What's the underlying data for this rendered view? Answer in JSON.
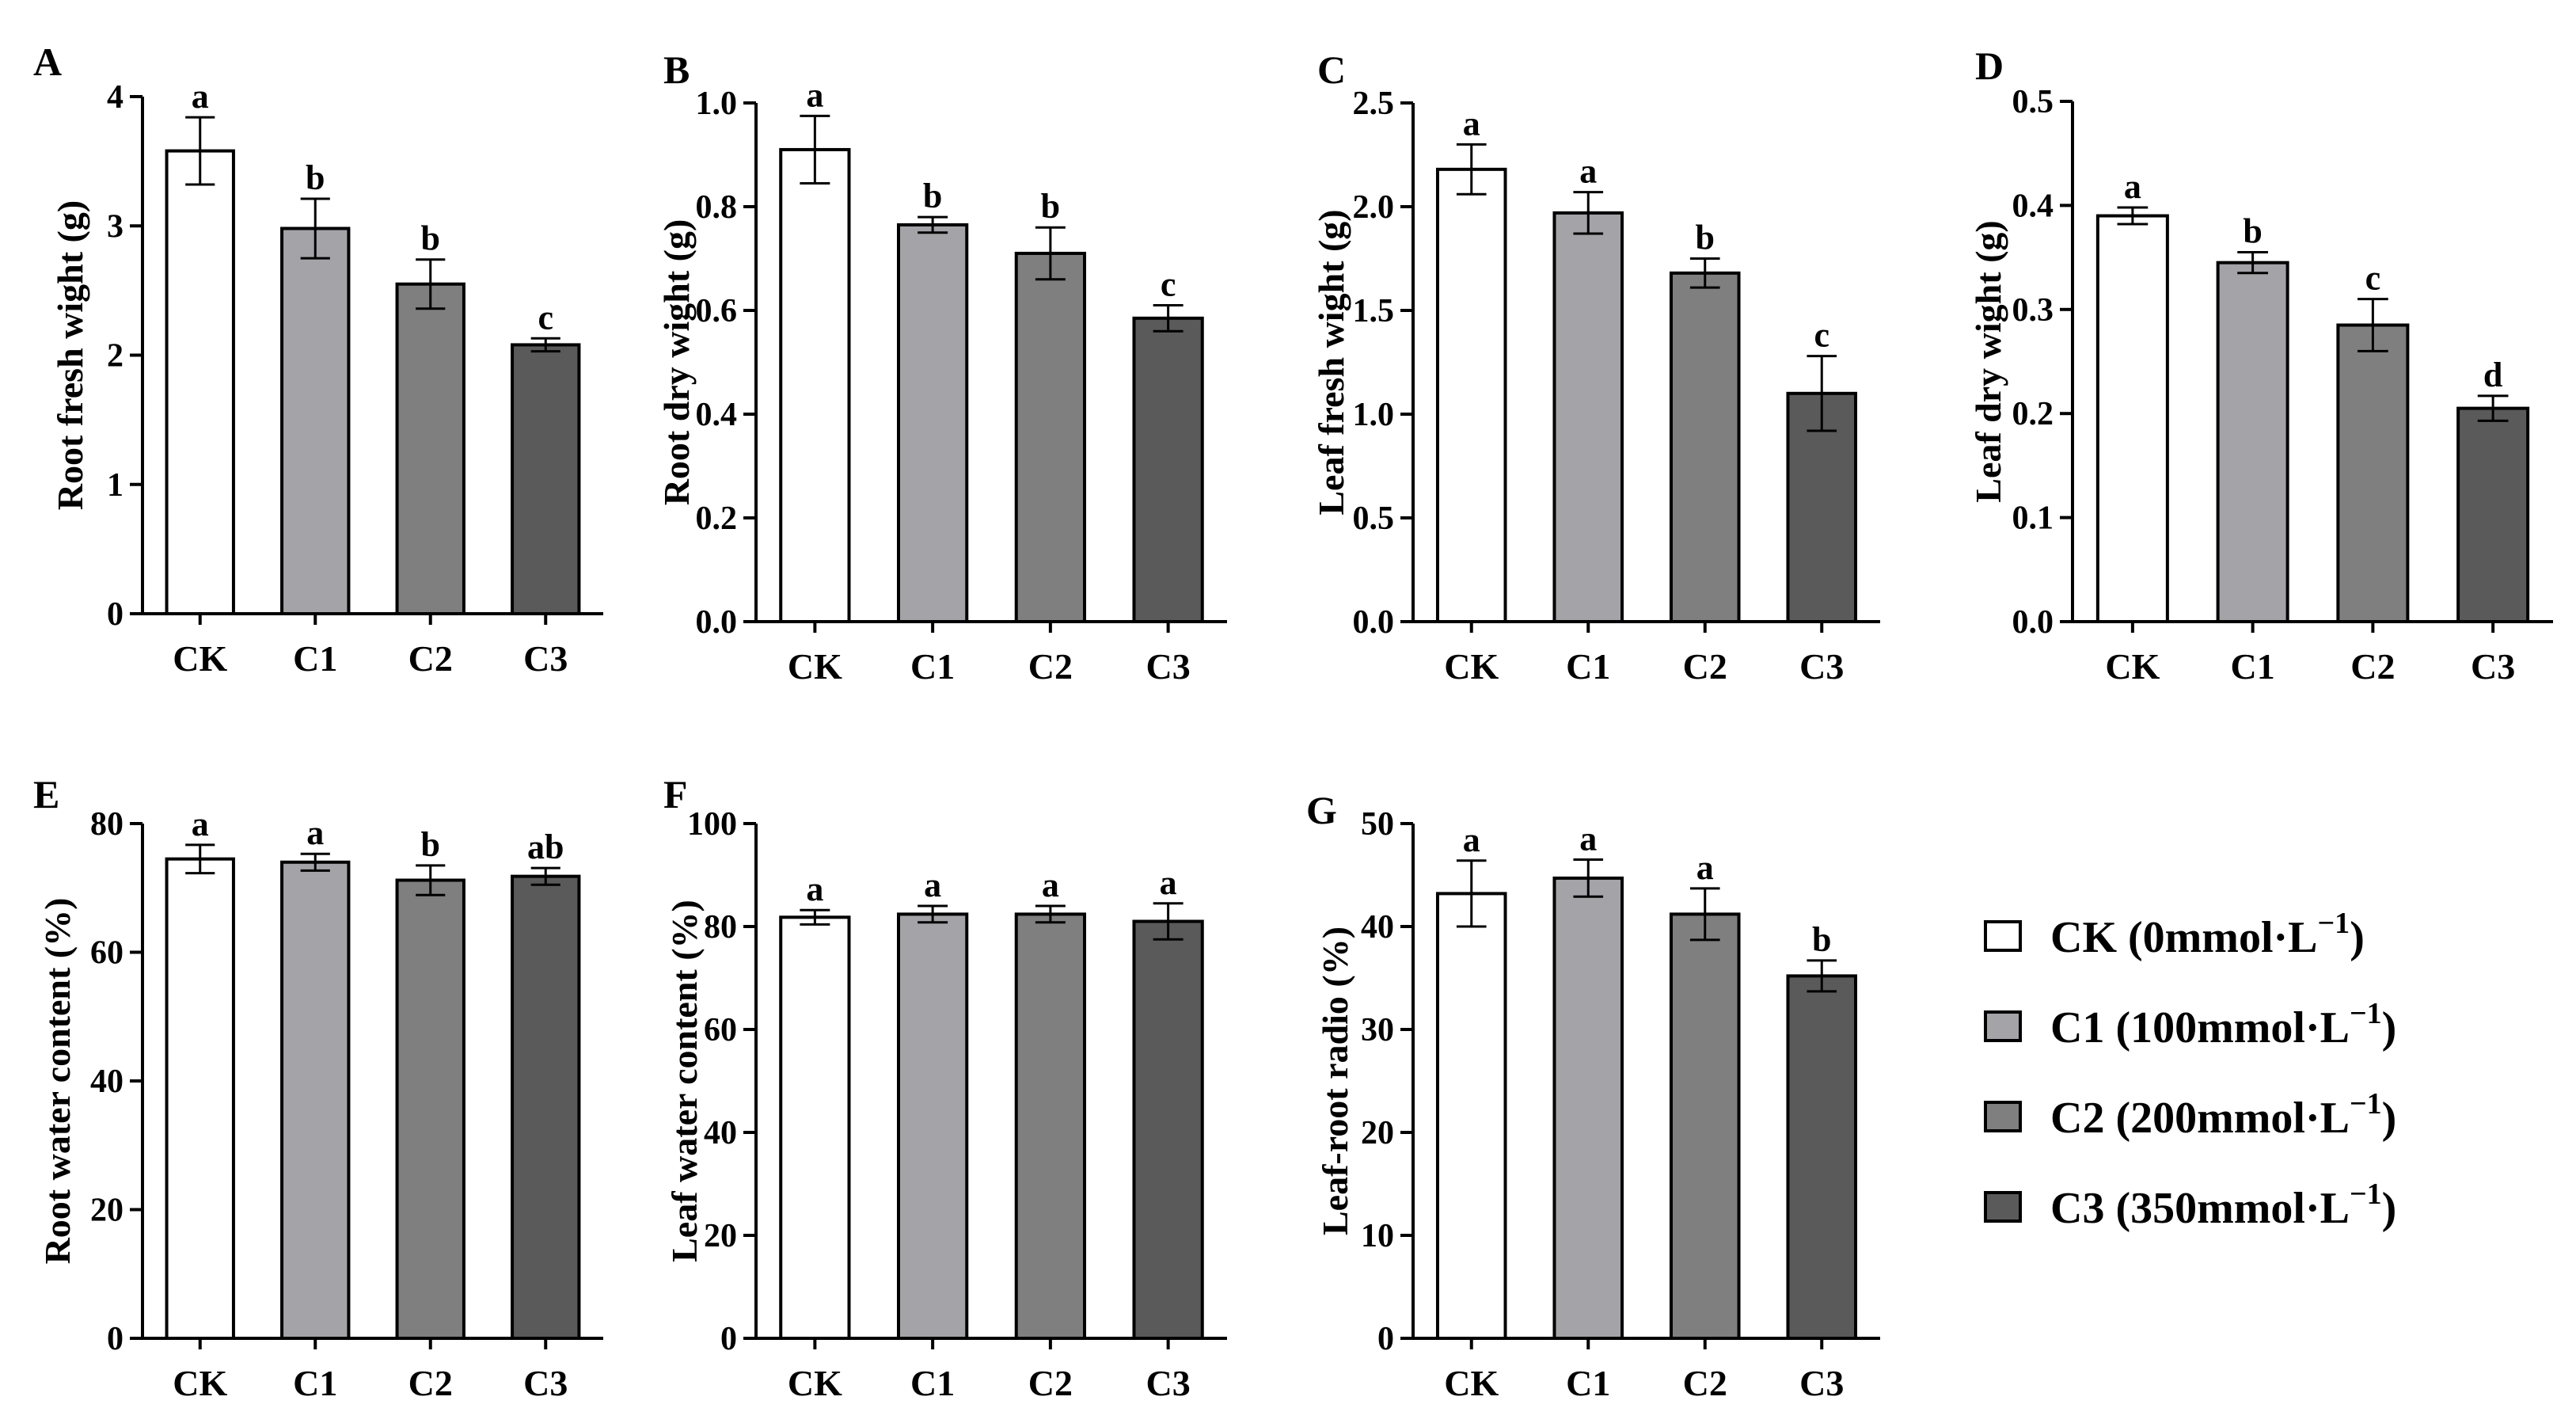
{
  "figure": {
    "categories": [
      "CK",
      "C1",
      "C2",
      "C3"
    ],
    "bar_colors": [
      "#ffffff",
      "#a3a3a8",
      "#7f7f7f",
      "#5a5a5a"
    ],
    "legend": [
      {
        "label": "CK",
        "concentration": "(0mmol·L",
        "sup": "−1",
        "close": ")"
      },
      {
        "label": "C1",
        "concentration": "(100mmol·L",
        "sup": "−1",
        "close": ")"
      },
      {
        "label": "C2",
        "concentration": "(200mmol·L",
        "sup": "−1",
        "close": ")"
      },
      {
        "label": "C3",
        "concentration": "(350mmol·L",
        "sup": "−1",
        "close": ")"
      }
    ]
  },
  "chart_data": [
    {
      "type": "bar",
      "panel": "A",
      "ylabel": "Root fresh wight (g)",
      "categories": [
        "CK",
        "C1",
        "C2",
        "C3"
      ],
      "values": [
        3.58,
        2.98,
        2.55,
        2.08
      ],
      "errors": [
        0.26,
        0.23,
        0.19,
        0.05
      ],
      "letters": [
        "a",
        "b",
        "b",
        "c"
      ],
      "ylim": [
        0,
        4
      ],
      "yticks": [
        0,
        1,
        2,
        3,
        4
      ],
      "ytick_labels": [
        "0",
        "1",
        "2",
        "3",
        "4"
      ]
    },
    {
      "type": "bar",
      "panel": "B",
      "ylabel": "Root dry wight (g)",
      "categories": [
        "CK",
        "C1",
        "C2",
        "C3"
      ],
      "values": [
        0.91,
        0.765,
        0.71,
        0.585
      ],
      "errors": [
        0.065,
        0.015,
        0.05,
        0.025
      ],
      "letters": [
        "a",
        "b",
        "b",
        "c"
      ],
      "ylim": [
        0,
        1.0
      ],
      "yticks": [
        0,
        0.2,
        0.4,
        0.6,
        0.8,
        1.0
      ],
      "ytick_labels": [
        "0.0",
        "0.2",
        "0.4",
        "0.6",
        "0.8",
        "1.0"
      ]
    },
    {
      "type": "bar",
      "panel": "C",
      "ylabel": "Leaf fresh wight (g)",
      "categories": [
        "CK",
        "C1",
        "C2",
        "C3"
      ],
      "values": [
        2.18,
        1.97,
        1.68,
        1.1
      ],
      "errors": [
        0.12,
        0.1,
        0.07,
        0.18
      ],
      "letters": [
        "a",
        "a",
        "b",
        "c"
      ],
      "ylim": [
        0,
        2.5
      ],
      "yticks": [
        0,
        0.5,
        1.0,
        1.5,
        2.0,
        2.5
      ],
      "ytick_labels": [
        "0.0",
        "0.5",
        "1.0",
        "1.5",
        "2.0",
        "2.5"
      ]
    },
    {
      "type": "bar",
      "panel": "D",
      "ylabel": "Leaf dry wight (g)",
      "categories": [
        "CK",
        "C1",
        "C2",
        "C3"
      ],
      "values": [
        0.39,
        0.345,
        0.285,
        0.205
      ],
      "errors": [
        0.008,
        0.01,
        0.025,
        0.012
      ],
      "letters": [
        "a",
        "b",
        "c",
        "d"
      ],
      "ylim": [
        0,
        0.5
      ],
      "yticks": [
        0,
        0.1,
        0.2,
        0.3,
        0.4,
        0.5
      ],
      "ytick_labels": [
        "0.0",
        "0.1",
        "0.2",
        "0.3",
        "0.4",
        "0.5"
      ]
    },
    {
      "type": "bar",
      "panel": "E",
      "ylabel": "Root water content (%)",
      "categories": [
        "CK",
        "C1",
        "C2",
        "C3"
      ],
      "values": [
        74.5,
        74.0,
        71.2,
        71.8
      ],
      "errors": [
        2.2,
        1.3,
        2.3,
        1.3
      ],
      "letters": [
        "a",
        "a",
        "b",
        "ab"
      ],
      "ylim": [
        0,
        80
      ],
      "yticks": [
        0,
        20,
        40,
        60,
        80
      ],
      "ytick_labels": [
        "0",
        "20",
        "40",
        "60",
        "80"
      ]
    },
    {
      "type": "bar",
      "panel": "F",
      "ylabel": "Leaf water content (%)",
      "categories": [
        "CK",
        "C1",
        "C2",
        "C3"
      ],
      "values": [
        81.8,
        82.4,
        82.4,
        81.0
      ],
      "errors": [
        1.4,
        1.6,
        1.6,
        3.5
      ],
      "letters": [
        "a",
        "a",
        "a",
        "a"
      ],
      "ylim": [
        0,
        100
      ],
      "yticks": [
        0,
        20,
        40,
        60,
        80,
        100
      ],
      "ytick_labels": [
        "0",
        "20",
        "40",
        "60",
        "80",
        "100"
      ]
    },
    {
      "type": "bar",
      "panel": "G",
      "ylabel": "Leaf-root radio (%)",
      "categories": [
        "CK",
        "C1",
        "C2",
        "C3"
      ],
      "values": [
        43.2,
        44.7,
        41.2,
        35.2
      ],
      "errors": [
        3.2,
        1.8,
        2.5,
        1.5
      ],
      "letters": [
        "a",
        "a",
        "a",
        "b"
      ],
      "ylim": [
        0,
        50
      ],
      "yticks": [
        0,
        10,
        20,
        30,
        40,
        50
      ],
      "ytick_labels": [
        "0",
        "10",
        "20",
        "30",
        "40",
        "50"
      ]
    }
  ]
}
